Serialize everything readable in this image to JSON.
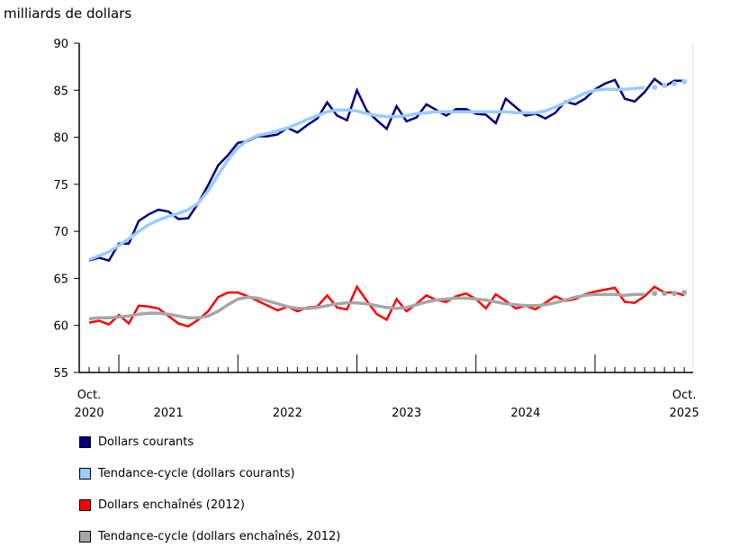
{
  "chart_data": {
    "type": "line",
    "ylabel": "milliards de dollars",
    "ylim": [
      55,
      90
    ],
    "yticks": [
      55,
      60,
      65,
      70,
      75,
      80,
      85,
      90
    ],
    "x_start": "2020-10",
    "x_end": "2025-10",
    "frequency": "monthly",
    "xtick_labels": [
      {
        "month": "2020-10",
        "lines": [
          "Oct.",
          "2020"
        ]
      },
      {
        "month": "2021-06",
        "lines": [
          "",
          "2021"
        ]
      },
      {
        "month": "2022-06",
        "lines": [
          "",
          "2022"
        ]
      },
      {
        "month": "2023-06",
        "lines": [
          "",
          "2023"
        ]
      },
      {
        "month": "2024-06",
        "lines": [
          "",
          "2024"
        ]
      },
      {
        "month": "2025-10",
        "lines": [
          "Oct.",
          "2025"
        ]
      }
    ],
    "series": [
      {
        "name": "Dollars courants",
        "color": "#000080",
        "style": "line",
        "values": [
          66.9,
          67.2,
          66.9,
          68.7,
          68.7,
          71.1,
          71.8,
          72.3,
          72.1,
          71.3,
          71.4,
          73.0,
          74.9,
          77.0,
          78.1,
          79.4,
          79.6,
          80.1,
          80.1,
          80.3,
          81.0,
          80.5,
          81.3,
          82.0,
          83.7,
          82.3,
          81.8,
          85.0,
          82.8,
          81.8,
          80.9,
          83.3,
          81.7,
          82.1,
          83.5,
          82.9,
          82.3,
          83.0,
          83.0,
          82.5,
          82.4,
          81.5,
          84.1,
          83.2,
          82.3,
          82.5,
          82.0,
          82.6,
          83.8,
          83.5,
          84.1,
          85.1,
          85.7,
          86.1,
          84.1,
          83.8,
          84.8,
          86.2,
          85.4,
          86.0,
          86.0
        ]
      },
      {
        "name": "Tendance-cycle (dollars courants)",
        "color": "#99ccff",
        "style": "trend",
        "dotted_last": 4,
        "values": [
          67.0,
          67.4,
          67.8,
          68.5,
          69.2,
          70.0,
          70.7,
          71.2,
          71.6,
          71.9,
          72.3,
          73.0,
          74.3,
          76.0,
          77.6,
          78.9,
          79.7,
          80.2,
          80.4,
          80.7,
          81.0,
          81.4,
          81.9,
          82.3,
          82.7,
          82.9,
          82.9,
          82.8,
          82.5,
          82.3,
          82.2,
          82.2,
          82.3,
          82.5,
          82.6,
          82.7,
          82.7,
          82.7,
          82.7,
          82.7,
          82.7,
          82.7,
          82.7,
          82.6,
          82.6,
          82.6,
          82.8,
          83.2,
          83.7,
          84.2,
          84.7,
          85.0,
          85.1,
          85.1,
          85.1,
          85.2,
          85.3,
          85.3,
          85.5,
          85.7,
          85.9
        ]
      },
      {
        "name": "Dollars enchaînés (2012)",
        "color": "#ff0000",
        "style": "line",
        "values": [
          60.3,
          60.5,
          60.1,
          61.1,
          60.2,
          62.1,
          62.0,
          61.8,
          61.0,
          60.2,
          59.9,
          60.6,
          61.5,
          63.0,
          63.5,
          63.5,
          63.1,
          62.6,
          62.1,
          61.6,
          62.0,
          61.5,
          61.9,
          62.0,
          63.2,
          61.9,
          61.7,
          64.1,
          62.6,
          61.2,
          60.6,
          62.8,
          61.5,
          62.3,
          63.2,
          62.7,
          62.5,
          63.1,
          63.4,
          62.8,
          61.8,
          63.3,
          62.6,
          61.8,
          62.1,
          61.7,
          62.4,
          63.1,
          62.6,
          62.8,
          63.3,
          63.6,
          63.8,
          64.0,
          62.5,
          62.4,
          63.1,
          64.1,
          63.5,
          63.5,
          63.2
        ]
      },
      {
        "name": "Tendance-cycle (dollars enchaînés, 2012)",
        "color": "#a6a6a6",
        "style": "trend",
        "dotted_last": 4,
        "values": [
          60.7,
          60.8,
          60.8,
          60.9,
          61.0,
          61.2,
          61.3,
          61.3,
          61.2,
          61.0,
          60.8,
          60.8,
          61.0,
          61.5,
          62.2,
          62.8,
          63.0,
          62.9,
          62.6,
          62.3,
          62.0,
          61.8,
          61.8,
          61.9,
          62.1,
          62.3,
          62.4,
          62.4,
          62.3,
          62.1,
          61.9,
          61.8,
          61.9,
          62.2,
          62.5,
          62.7,
          62.8,
          62.9,
          62.9,
          62.8,
          62.7,
          62.5,
          62.3,
          62.2,
          62.1,
          62.1,
          62.2,
          62.4,
          62.7,
          63.0,
          63.2,
          63.3,
          63.3,
          63.3,
          63.2,
          63.3,
          63.3,
          63.4,
          63.4,
          63.4,
          63.5
        ]
      }
    ],
    "legend": "bottom",
    "grid": false
  }
}
